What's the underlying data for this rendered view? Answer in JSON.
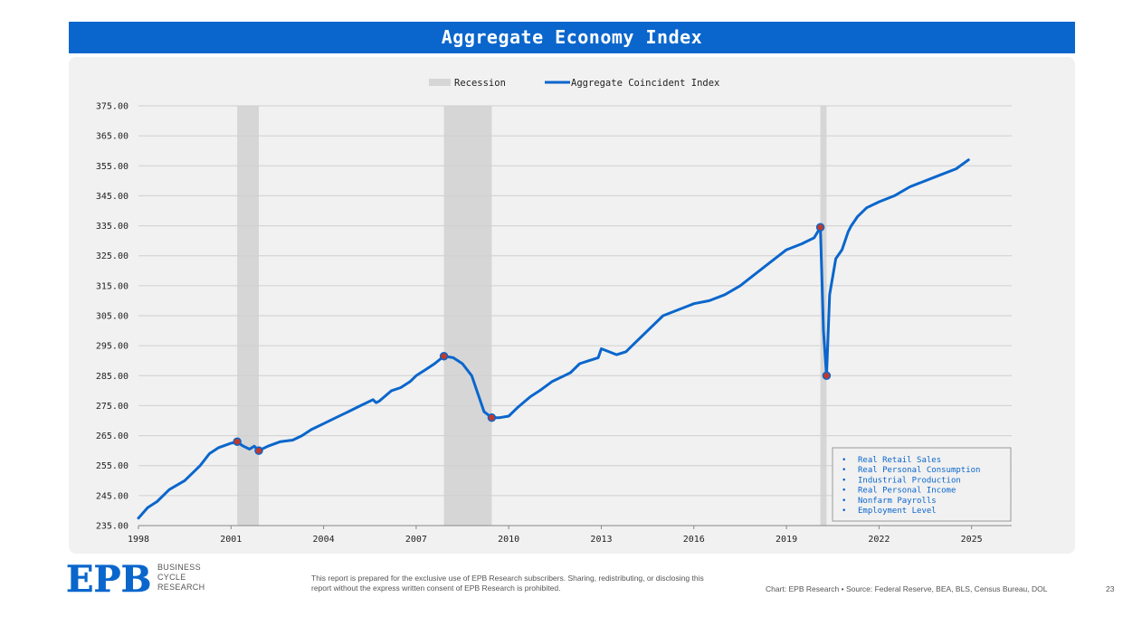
{
  "header": {
    "title": "Aggregate Economy Index"
  },
  "chart_data": {
    "type": "line",
    "legend": [
      {
        "name": "Recession",
        "color": "#d6d6d6"
      },
      {
        "name": "Aggregate Coincident Index",
        "color": "#0a66cc"
      }
    ],
    "x_tick_labels": [
      "1998",
      "2001",
      "2004",
      "2007",
      "2010",
      "2013",
      "2016",
      "2019",
      "2022",
      "2025"
    ],
    "y_tick_labels": [
      "375.00",
      "365.00",
      "355.00",
      "345.00",
      "335.00",
      "325.00",
      "315.00",
      "305.00",
      "295.00",
      "285.00",
      "275.00",
      "265.00",
      "255.00",
      "245.00",
      "235.00"
    ],
    "xlim": [
      1998.0,
      2026.3
    ],
    "ylim": [
      235,
      375
    ],
    "grid": "horizontal",
    "recessions": [
      [
        2001.2,
        2001.9
      ],
      [
        2007.9,
        2009.45
      ],
      [
        2020.1,
        2020.3
      ]
    ],
    "series": [
      {
        "name": "Aggregate Coincident Index",
        "color": "#0a66cc",
        "x": [
          1998.0,
          1998.3,
          1998.6,
          1999.0,
          1999.5,
          2000.0,
          2000.3,
          2000.6,
          2001.0,
          2001.2,
          2001.4,
          2001.6,
          2001.75,
          2001.9,
          2002.2,
          2002.6,
          2003.0,
          2003.3,
          2003.6,
          2004.0,
          2004.4,
          2004.8,
          2005.2,
          2005.6,
          2005.7,
          2005.8,
          2006.2,
          2006.5,
          2006.8,
          2007.0,
          2007.3,
          2007.6,
          2007.9,
          2008.2,
          2008.5,
          2008.8,
          2009.0,
          2009.2,
          2009.45,
          2009.7,
          2010.0,
          2010.3,
          2010.7,
          2011.0,
          2011.4,
          2011.8,
          2012.0,
          2012.3,
          2012.6,
          2012.9,
          2013.0,
          2013.5,
          2013.8,
          2014.0,
          2014.5,
          2015.0,
          2015.5,
          2016.0,
          2016.5,
          2017.0,
          2017.5,
          2018.0,
          2018.5,
          2019.0,
          2019.5,
          2019.9,
          2020.1,
          2020.2,
          2020.3,
          2020.4,
          2020.6,
          2020.8,
          2021.0,
          2021.1,
          2021.3,
          2021.6,
          2022.0,
          2022.5,
          2023.0,
          2023.5,
          2024.0,
          2024.5,
          2024.9
        ],
        "y": [
          237.5,
          241,
          243,
          247,
          250,
          255,
          259,
          261,
          262.5,
          262.8,
          261.5,
          260.5,
          261.5,
          260,
          261.5,
          263,
          263.5,
          265,
          267,
          269,
          271,
          273,
          275,
          277,
          276,
          276.5,
          280,
          281,
          283,
          285,
          287,
          289,
          291.5,
          291,
          289,
          285,
          279,
          273,
          271,
          271,
          271.5,
          274.5,
          278,
          280,
          283,
          285,
          286,
          289,
          290,
          291,
          294,
          292,
          293,
          295,
          300,
          305,
          307,
          309,
          310,
          312,
          315,
          319,
          323,
          327,
          329,
          331,
          334.5,
          300,
          285,
          312,
          324,
          327,
          333,
          335,
          338,
          341,
          343,
          345,
          348,
          350,
          352,
          354,
          357
        ]
      }
    ],
    "markers": [
      {
        "x": 2001.2,
        "y": 263
      },
      {
        "x": 2001.9,
        "y": 260
      },
      {
        "x": 2007.9,
        "y": 291.5
      },
      {
        "x": 2009.45,
        "y": 271
      },
      {
        "x": 2020.1,
        "y": 334.5
      },
      {
        "x": 2020.3,
        "y": 285
      }
    ],
    "annotation_box": {
      "items": [
        "Real Retail Sales",
        "Real Personal Consumption",
        "Industrial Production",
        "Real Personal Income",
        "Nonfarm Payrolls",
        "Employment Level"
      ]
    }
  },
  "footer": {
    "logo": "EPB",
    "logo_lines": [
      "BUSINESS",
      "CYCLE",
      "RESEARCH"
    ],
    "disclaimer": "This report is prepared for the exclusive use of EPB Research subscribers. Sharing, redistributing, or disclosing this report without the express written consent of EPB Research is prohibited.",
    "source": "Chart: EPB Research  •  Source: Federal Reserve, BEA, BLS, Census Bureau, DOL",
    "page_number": "23"
  }
}
